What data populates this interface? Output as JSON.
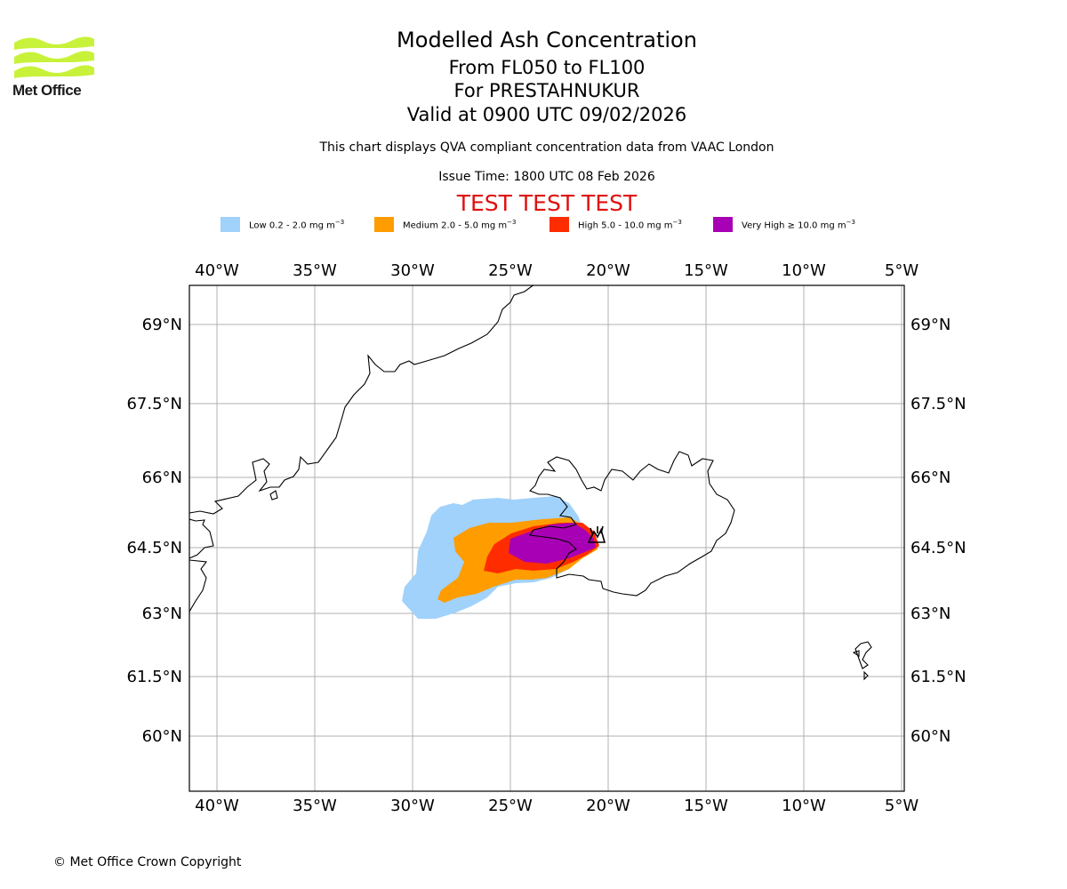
{
  "logo": {
    "name": "Met Office"
  },
  "title": {
    "main": "Modelled Ash Concentration",
    "levels": "From FL050 to FL100",
    "volcano": "For PRESTAHNUKUR",
    "valid": "Valid at 0900 UTC 09/02/2026"
  },
  "subtitle": "This chart displays QVA compliant concentration data from VAAC London",
  "issue_time": "Issue Time: 1800 UTC 08 Feb 2026",
  "test_banner": "TEST TEST TEST",
  "legend": [
    {
      "label": "Low 0.2 - 2.0 mg m",
      "color": "#a0d2fb"
    },
    {
      "label": "Medium 2.0 - 5.0 mg m",
      "color": "#fe9c00"
    },
    {
      "label": "High 5.0 - 10.0 mg m",
      "color": "#ff2c00"
    },
    {
      "label": "Very High ≥ 10.0 mg m",
      "color": "#a800b4"
    }
  ],
  "legend_unit_exp": "−3",
  "axes": {
    "lon_labels": [
      "40°W",
      "35°W",
      "30°W",
      "25°W",
      "20°W",
      "15°W",
      "10°W",
      "5°W"
    ],
    "lat_labels": [
      "69°N",
      "67.5°N",
      "66°N",
      "64.5°N",
      "63°N",
      "61.5°N",
      "60°N"
    ]
  },
  "copyright": "© Met Office Crown Copyright"
}
